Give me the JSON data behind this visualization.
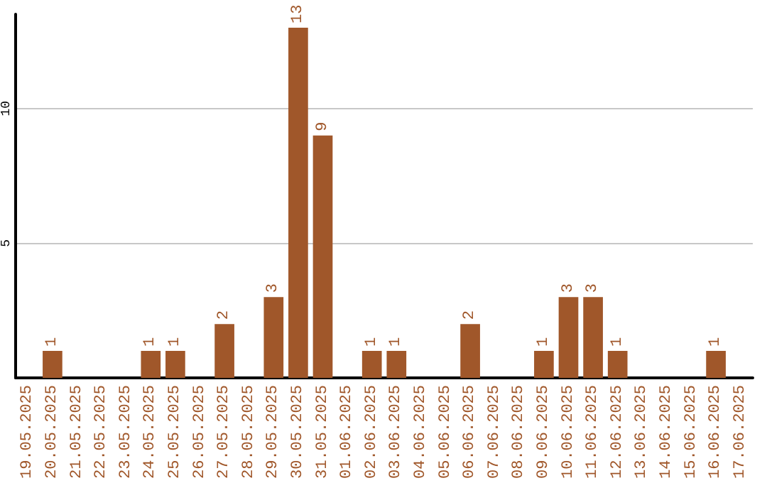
{
  "chart_data": {
    "type": "bar",
    "categories": [
      "19.05.2025",
      "20.05.2025",
      "21.05.2025",
      "22.05.2025",
      "23.05.2025",
      "24.05.2025",
      "25.05.2025",
      "26.05.2025",
      "27.05.2025",
      "28.05.2025",
      "29.05.2025",
      "30.05.2025",
      "31.05.2025",
      "01.06.2025",
      "02.06.2025",
      "03.06.2025",
      "04.06.2025",
      "05.06.2025",
      "06.06.2025",
      "07.06.2025",
      "08.06.2025",
      "09.06.2025",
      "10.06.2025",
      "11.06.2025",
      "12.06.2025",
      "13.06.2025",
      "14.06.2025",
      "15.06.2025",
      "16.06.2025",
      "17.06.2025"
    ],
    "values": [
      0,
      1,
      0,
      0,
      0,
      1,
      1,
      0,
      2,
      0,
      3,
      13,
      9,
      0,
      1,
      1,
      0,
      0,
      2,
      0,
      0,
      1,
      3,
      3,
      1,
      0,
      0,
      0,
      1,
      0
    ],
    "value_labels": [
      null,
      "1",
      null,
      null,
      null,
      "1",
      "1",
      null,
      "2",
      null,
      "3",
      "13",
      "9",
      null,
      "1",
      "1",
      null,
      null,
      "2",
      null,
      null,
      "1",
      "3",
      "3",
      "1",
      null,
      null,
      null,
      "1",
      null
    ],
    "color": "#a0572a",
    "ylim": [
      0,
      13.5
    ],
    "yticks": [
      5,
      10
    ],
    "grid": "y"
  }
}
